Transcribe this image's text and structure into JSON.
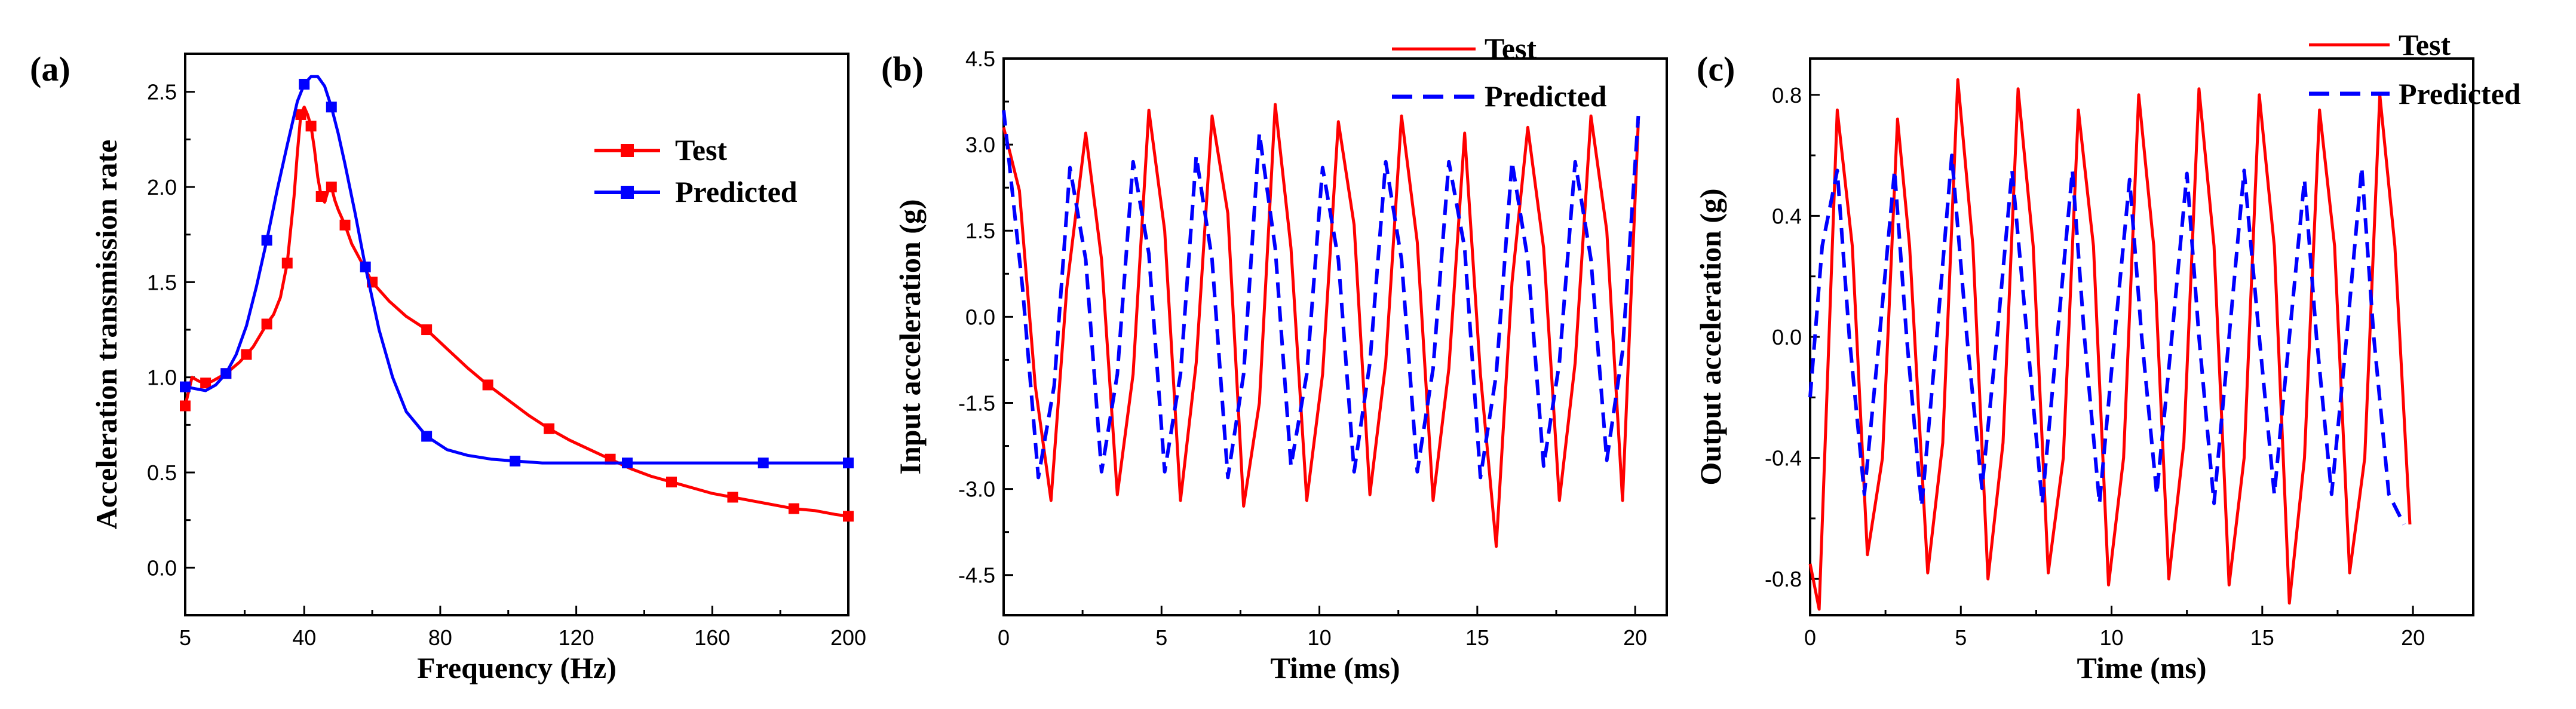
{
  "colors": {
    "test": "#ff0000",
    "predicted": "#0000ff",
    "axis": "#000000"
  },
  "chart_data": [
    {
      "panel": "(a)",
      "type": "line",
      "xlabel": "Frequency (Hz)",
      "ylabel": "Acceleration transmission rate",
      "xlim": [
        5,
        200
      ],
      "ylim": [
        -0.25,
        2.7
      ],
      "xticks": [
        5,
        40,
        80,
        120,
        160,
        200
      ],
      "xtick_labels": [
        "5",
        "40",
        "80",
        "120",
        "160",
        "200"
      ],
      "yticks": [
        0.0,
        0.5,
        1.0,
        1.5,
        2.0,
        2.5
      ],
      "ytick_labels": [
        "0.0",
        "0.5",
        "1.0",
        "1.5",
        "2.0",
        "2.5"
      ],
      "legend": [
        "Test",
        "Predicted"
      ],
      "legend_position": "top-right",
      "series": [
        {
          "name": "Test",
          "style": "solid-square-markers",
          "x": [
            5,
            7,
            9,
            11,
            13,
            15,
            17,
            19,
            21,
            23,
            25,
            27,
            29,
            31,
            33,
            35,
            37,
            38,
            39,
            40,
            41,
            42,
            43,
            44,
            45,
            46,
            47,
            48,
            49,
            50,
            52,
            54,
            57,
            60,
            65,
            70,
            76,
            82,
            88,
            94,
            100,
            106,
            112,
            118,
            124,
            130,
            136,
            142,
            148,
            154,
            160,
            166,
            172,
            178,
            184,
            190,
            196,
            200
          ],
          "y": [
            0.85,
            1.0,
            0.98,
            0.97,
            0.98,
            1.0,
            1.02,
            1.05,
            1.08,
            1.12,
            1.16,
            1.22,
            1.28,
            1.33,
            1.42,
            1.6,
            1.95,
            2.18,
            2.38,
            2.42,
            2.38,
            2.32,
            2.2,
            2.05,
            1.95,
            1.92,
            1.98,
            2.0,
            1.93,
            1.88,
            1.8,
            1.7,
            1.6,
            1.5,
            1.4,
            1.32,
            1.25,
            1.15,
            1.05,
            0.96,
            0.88,
            0.8,
            0.73,
            0.67,
            0.62,
            0.57,
            0.52,
            0.48,
            0.45,
            0.42,
            0.39,
            0.37,
            0.35,
            0.33,
            0.31,
            0.3,
            0.28,
            0.27
          ]
        },
        {
          "name": "Predicted",
          "style": "solid-square-markers",
          "x": [
            5,
            8,
            11,
            14,
            17,
            20,
            23,
            26,
            29,
            32,
            35,
            38,
            40,
            42,
            44,
            46,
            48,
            50,
            52,
            55,
            58,
            62,
            66,
            70,
            76,
            82,
            88,
            95,
            102,
            110,
            118,
            126,
            135,
            145,
            155,
            165,
            175,
            185,
            195,
            200
          ],
          "y": [
            0.95,
            0.94,
            0.93,
            0.96,
            1.02,
            1.12,
            1.27,
            1.48,
            1.72,
            1.98,
            2.22,
            2.45,
            2.54,
            2.58,
            2.58,
            2.53,
            2.42,
            2.28,
            2.12,
            1.86,
            1.58,
            1.25,
            1.0,
            0.82,
            0.69,
            0.62,
            0.59,
            0.57,
            0.56,
            0.55,
            0.55,
            0.55,
            0.55,
            0.55,
            0.55,
            0.55,
            0.55,
            0.55,
            0.55,
            0.55
          ]
        }
      ]
    },
    {
      "panel": "(b)",
      "type": "line",
      "xlabel": "Time (ms)",
      "ylabel": "Input acceleration (g)",
      "xlim": [
        0,
        21
      ],
      "ylim": [
        -5.2,
        4.5
      ],
      "xticks": [
        0,
        5,
        10,
        15,
        20
      ],
      "xtick_labels": [
        "0",
        "5",
        "10",
        "15",
        "20"
      ],
      "yticks": [
        4.5,
        3.0,
        1.5,
        0.0,
        -1.5,
        -3.0,
        -4.5
      ],
      "ytick_labels": [
        "4.5",
        "3.0",
        "1.5",
        "0.0",
        "-1.5",
        "-3.0",
        "-4.5"
      ],
      "legend": [
        "Test",
        "Predicted"
      ],
      "legend_position": "top-right",
      "series": [
        {
          "name": "Test",
          "style": "solid",
          "x": [
            0.0,
            0.5,
            1.0,
            1.5,
            2.0,
            2.6,
            3.1,
            3.6,
            4.1,
            4.6,
            5.1,
            5.6,
            6.1,
            6.6,
            7.1,
            7.6,
            8.1,
            8.6,
            9.1,
            9.6,
            10.1,
            10.6,
            11.1,
            11.6,
            12.1,
            12.6,
            13.1,
            13.6,
            14.1,
            14.6,
            15.1,
            15.6,
            16.1,
            16.6,
            17.1,
            17.6,
            18.1,
            18.6,
            19.1,
            19.6,
            20.1
          ],
          "y": [
            3.3,
            2.2,
            -1.2,
            -3.2,
            0.5,
            3.2,
            1.0,
            -3.1,
            -1.0,
            3.6,
            1.5,
            -3.2,
            -0.8,
            3.5,
            1.8,
            -3.3,
            -1.5,
            3.7,
            1.2,
            -3.2,
            -1.0,
            3.4,
            1.6,
            -3.1,
            -0.8,
            3.5,
            1.3,
            -3.2,
            -0.9,
            3.2,
            -1.0,
            -4.0,
            0.6,
            3.3,
            1.2,
            -3.2,
            -0.8,
            3.5,
            1.5,
            -3.2,
            3.4
          ]
        },
        {
          "name": "Predicted",
          "style": "dashed",
          "x": [
            0.0,
            0.6,
            1.1,
            1.6,
            2.1,
            2.6,
            3.1,
            3.6,
            4.1,
            4.6,
            5.1,
            5.6,
            6.1,
            6.6,
            7.1,
            7.6,
            8.1,
            8.6,
            9.1,
            9.6,
            10.1,
            10.6,
            11.1,
            11.6,
            12.1,
            12.6,
            13.1,
            13.6,
            14.1,
            14.6,
            15.1,
            15.6,
            16.1,
            16.6,
            17.1,
            17.6,
            18.1,
            18.6,
            19.1,
            19.6,
            20.1
          ],
          "y": [
            3.6,
            0.5,
            -2.8,
            -1.2,
            2.6,
            1.0,
            -2.7,
            -1.0,
            2.7,
            1.1,
            -2.7,
            -1.0,
            2.8,
            1.0,
            -2.8,
            -1.0,
            3.2,
            1.2,
            -2.6,
            -1.0,
            2.6,
            1.0,
            -2.7,
            -0.8,
            2.7,
            1.0,
            -2.7,
            -0.9,
            2.7,
            1.2,
            -2.8,
            -1.0,
            2.7,
            1.0,
            -2.6,
            -0.8,
            2.7,
            1.0,
            -2.5,
            -0.6,
            3.5
          ]
        }
      ]
    },
    {
      "panel": "(c)",
      "type": "line",
      "xlabel": "Time (ms)",
      "ylabel": "Output acceleration (g)",
      "xlim": [
        0,
        22
      ],
      "ylim": [
        -0.92,
        0.92
      ],
      "xticks": [
        0,
        5,
        10,
        15,
        20
      ],
      "xtick_labels": [
        "0",
        "5",
        "10",
        "15",
        "20"
      ],
      "yticks": [
        0.8,
        0.4,
        0.0,
        -0.4,
        -0.8
      ],
      "ytick_labels": [
        "0.8",
        "0.4",
        "0.0",
        "-0.4",
        "-0.8"
      ],
      "legend": [
        "Test",
        "Predicted"
      ],
      "legend_position": "top-right",
      "series": [
        {
          "name": "Test",
          "style": "solid",
          "x": [
            0.0,
            0.3,
            0.9,
            1.4,
            1.9,
            2.4,
            2.9,
            3.3,
            3.9,
            4.4,
            4.9,
            5.4,
            5.9,
            6.4,
            6.9,
            7.4,
            7.9,
            8.4,
            8.9,
            9.4,
            9.9,
            10.4,
            10.9,
            11.4,
            11.9,
            12.4,
            12.9,
            13.4,
            13.9,
            14.4,
            14.9,
            15.4,
            15.9,
            16.4,
            16.9,
            17.4,
            17.9,
            18.4,
            18.9,
            19.4,
            19.9
          ],
          "y": [
            -0.75,
            -0.9,
            0.75,
            0.3,
            -0.72,
            -0.4,
            0.72,
            0.3,
            -0.78,
            -0.35,
            0.85,
            0.3,
            -0.8,
            -0.35,
            0.82,
            0.3,
            -0.78,
            -0.4,
            0.75,
            0.3,
            -0.82,
            -0.4,
            0.8,
            0.3,
            -0.8,
            -0.35,
            0.82,
            0.3,
            -0.82,
            -0.4,
            0.8,
            0.3,
            -0.88,
            -0.4,
            0.75,
            0.3,
            -0.78,
            -0.4,
            0.8,
            0.3,
            -0.62
          ]
        },
        {
          "name": "Predicted",
          "style": "dashed",
          "x": [
            0.0,
            0.4,
            0.9,
            1.3,
            1.8,
            2.3,
            2.8,
            3.2,
            3.7,
            4.2,
            4.7,
            5.2,
            5.7,
            6.2,
            6.7,
            7.2,
            7.7,
            8.2,
            8.7,
            9.1,
            9.6,
            10.1,
            10.6,
            11.0,
            11.5,
            12.0,
            12.5,
            12.9,
            13.4,
            13.9,
            14.4,
            14.9,
            15.4,
            15.9,
            16.4,
            16.8,
            17.3,
            17.8,
            18.3,
            18.7,
            19.2,
            19.7
          ],
          "y": [
            -0.2,
            0.3,
            0.55,
            0.0,
            -0.52,
            0.0,
            0.55,
            0.0,
            -0.56,
            0.0,
            0.6,
            0.0,
            -0.5,
            0.0,
            0.55,
            0.0,
            -0.55,
            0.0,
            0.55,
            0.0,
            -0.55,
            0.0,
            0.52,
            0.0,
            -0.52,
            0.0,
            0.54,
            0.0,
            -0.55,
            0.0,
            0.55,
            0.0,
            -0.52,
            0.0,
            0.52,
            0.0,
            -0.52,
            0.0,
            0.56,
            0.0,
            -0.52,
            -0.62
          ]
        }
      ]
    }
  ]
}
